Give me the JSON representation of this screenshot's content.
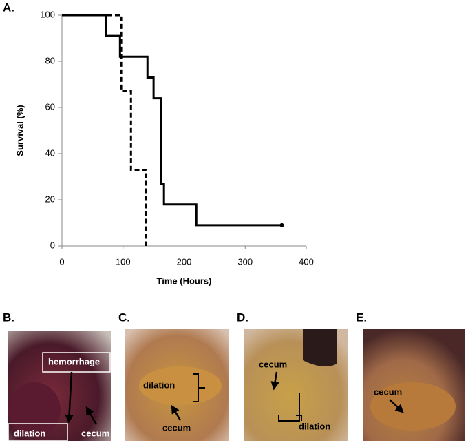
{
  "chart_data": {
    "type": "step",
    "panel_label": "A.",
    "x_label": "Time (Hours)",
    "y_label": "Survival (%)",
    "xlim": [
      0,
      400
    ],
    "xticks": [
      0,
      100,
      200,
      300,
      400
    ],
    "ylim": [
      0,
      100
    ],
    "yticks": [
      0,
      20,
      40,
      60,
      80,
      100
    ],
    "series": [
      {
        "color": "#000000",
        "dash": "solid",
        "end_marker": true,
        "x": [
          0,
          72,
          95,
          140,
          150,
          162,
          167,
          220,
          360
        ],
        "values": [
          100,
          91,
          82,
          73,
          64,
          27,
          18,
          9,
          9
        ]
      },
      {
        "color": "#000000",
        "dash": "dashed",
        "end_marker": false,
        "x": [
          0,
          97,
          113,
          138
        ],
        "values": [
          100,
          67,
          33,
          0
        ]
      }
    ]
  },
  "panels": [
    {
      "label": "B.",
      "annotations": [
        "hemorrhage",
        "dilation",
        "cecum"
      ]
    },
    {
      "label": "C.",
      "annotations": [
        "dilation",
        "cecum"
      ]
    },
    {
      "label": "D.",
      "annotations": [
        "cecum",
        "dilation"
      ]
    },
    {
      "label": "E.",
      "annotations": [
        "cecum"
      ]
    }
  ]
}
